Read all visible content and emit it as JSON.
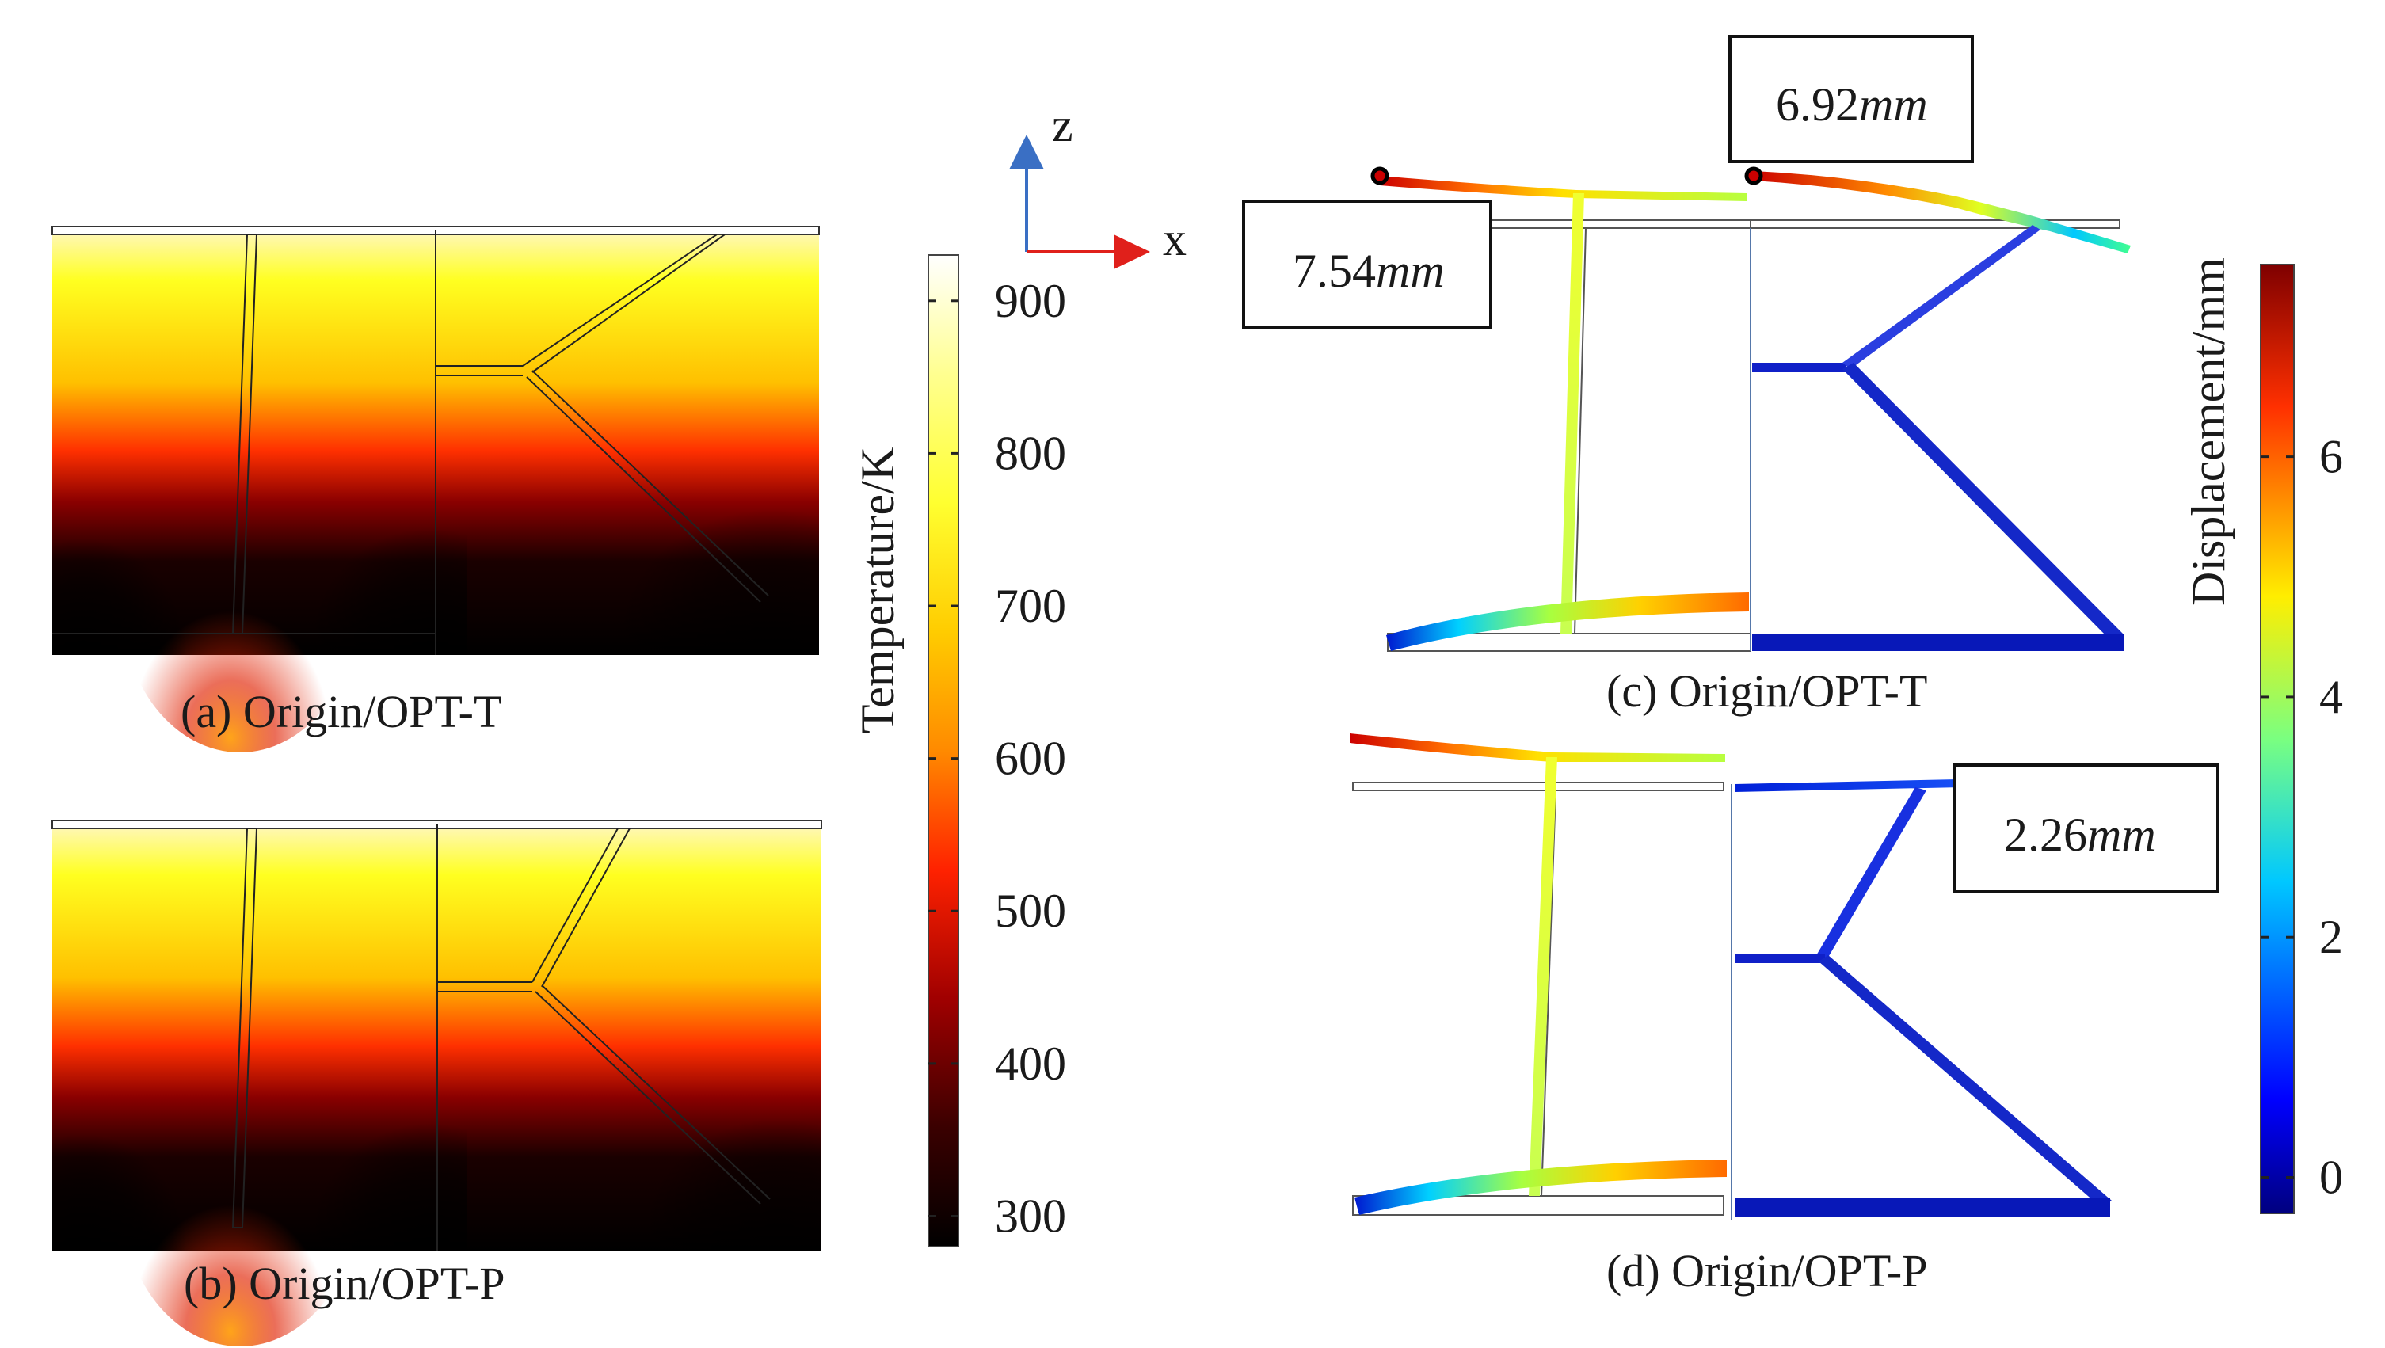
{
  "captions": {
    "a": "(a) Origin/OPT-T",
    "b": "(b) Origin/OPT-P",
    "c": "(c) Origin/OPT-T",
    "d": "(d) Origin/OPT-P"
  },
  "temperature_scale": {
    "label": "Temperature/K",
    "ticks": [
      "900",
      "800",
      "700",
      "600",
      "500",
      "400",
      "300"
    ],
    "min": 280,
    "max": 930
  },
  "displacement_scale": {
    "label": "Displacement/mm",
    "ticks": [
      "6",
      "4",
      "2",
      "0"
    ],
    "min": -0.3,
    "max": 7.6
  },
  "axes_triad": {
    "z_label": "z",
    "x_label": "x"
  },
  "annotations": {
    "c_left": {
      "value": "7.54",
      "unit": "mm"
    },
    "c_right": {
      "value": "6.92",
      "unit": "mm"
    },
    "d_right": {
      "value": "2.26",
      "unit": "mm"
    }
  },
  "colors": {
    "axis_z": "#3a6fc4",
    "axis_x": "#e0201b",
    "box_stroke": "#111111"
  }
}
